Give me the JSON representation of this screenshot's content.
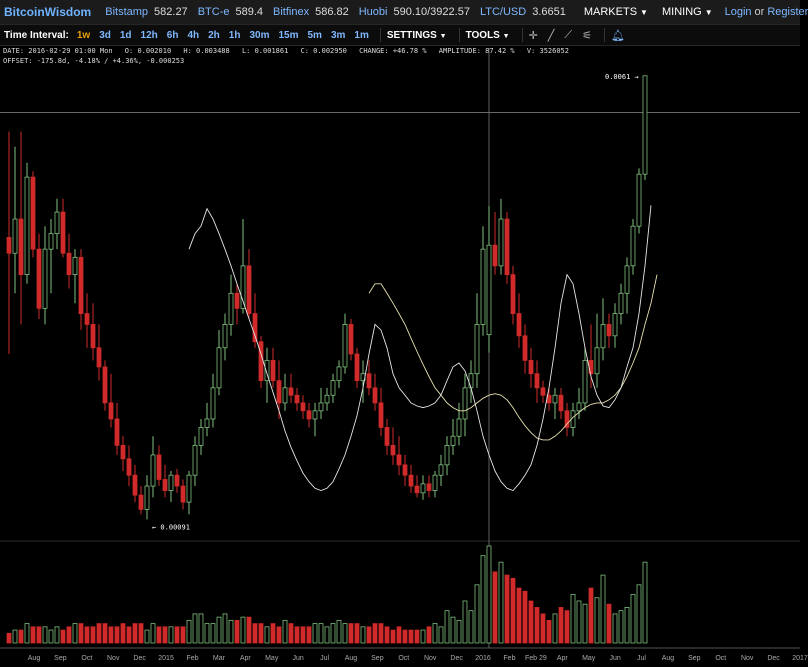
{
  "nav": {
    "logo": "BitcoinWisdom",
    "markets": [
      {
        "name": "Bitstamp",
        "value": "582.27"
      },
      {
        "name": "BTC-e",
        "value": "589.4"
      },
      {
        "name": "Bitfinex",
        "value": "586.82"
      },
      {
        "name": "Huobi",
        "value": "590.10/3922.57"
      },
      {
        "name": "LTC/USD",
        "value": "3.6651"
      }
    ],
    "menu_markets": "MARKETS",
    "menu_mining": "MINING",
    "login": "Login",
    "or": "or",
    "register": "Register"
  },
  "toolbar": {
    "interval_label": "Time Interval:",
    "intervals": [
      "1w",
      "3d",
      "1d",
      "12h",
      "6h",
      "4h",
      "2h",
      "1h",
      "30m",
      "15m",
      "5m",
      "3m",
      "1m"
    ],
    "active_interval": "1w",
    "settings": "SETTINGS",
    "tools": "TOOLS"
  },
  "info": {
    "line1": [
      "DATE: 2016-02-29 01:00 Mon",
      "O: 0.002010",
      "H: 0.003488",
      "L: 0.001861",
      "C: 0.002950",
      "CHANGE: +46.78 %",
      "AMPLITUDE: 87.42 %",
      "V: 3526052"
    ],
    "line2": "OFFSET: -175.8d, -4.18% / +4.36%, -0.000253"
  },
  "chart_data": {
    "type": "candlestick",
    "y_scale": "log",
    "ylim": [
      0.0009,
      0.0062
    ],
    "x_tick_labels": [
      "Aug",
      "Sep",
      "Oct",
      "Nov",
      "Dec",
      "2015",
      "Feb",
      "Mar",
      "Apr",
      "May",
      "Jun",
      "Jul",
      "Aug",
      "Sep",
      "Oct",
      "Nov",
      "Dec",
      "2016",
      "Feb",
      "Feb 29",
      "Apr",
      "May",
      "Jun",
      "Jul",
      "Aug",
      "Sep",
      "Oct",
      "Nov",
      "Dec",
      "2017"
    ],
    "annotations": {
      "max_label": "0.0061",
      "min_label": "0.00091"
    },
    "crosshair": {
      "date": "Feb 29",
      "value": 0.00521
    },
    "colors": {
      "up": "#7fc07f",
      "down": "#d02a2a",
      "ma_short": "#e6e6e6",
      "ma_long": "#e8e2b0",
      "axis": "#aaaaaa",
      "bg": "#000000"
    },
    "candles": [
      {
        "o": 0.00305,
        "h": 0.0048,
        "l": 0.00185,
        "c": 0.00285,
        "v": 3
      },
      {
        "o": 0.00285,
        "h": 0.0045,
        "l": 0.0024,
        "c": 0.0033,
        "v": 4
      },
      {
        "o": 0.0033,
        "h": 0.0048,
        "l": 0.0021,
        "c": 0.0026,
        "v": 4
      },
      {
        "o": 0.0026,
        "h": 0.0042,
        "l": 0.0025,
        "c": 0.00395,
        "v": 6
      },
      {
        "o": 0.00395,
        "h": 0.00405,
        "l": 0.0028,
        "c": 0.0029,
        "v": 5
      },
      {
        "o": 0.0029,
        "h": 0.0031,
        "l": 0.00215,
        "c": 0.00225,
        "v": 5
      },
      {
        "o": 0.00225,
        "h": 0.0032,
        "l": 0.0021,
        "c": 0.0029,
        "v": 5
      },
      {
        "o": 0.0029,
        "h": 0.0033,
        "l": 0.0024,
        "c": 0.0031,
        "v": 4
      },
      {
        "o": 0.0031,
        "h": 0.0036,
        "l": 0.0029,
        "c": 0.0034,
        "v": 5
      },
      {
        "o": 0.0034,
        "h": 0.0036,
        "l": 0.0028,
        "c": 0.00285,
        "v": 4
      },
      {
        "o": 0.00285,
        "h": 0.0031,
        "l": 0.00245,
        "c": 0.0026,
        "v": 5
      },
      {
        "o": 0.0026,
        "h": 0.0029,
        "l": 0.0023,
        "c": 0.0028,
        "v": 6
      },
      {
        "o": 0.0028,
        "h": 0.0029,
        "l": 0.00205,
        "c": 0.0022,
        "v": 6
      },
      {
        "o": 0.0022,
        "h": 0.0024,
        "l": 0.0019,
        "c": 0.0021,
        "v": 5
      },
      {
        "o": 0.0021,
        "h": 0.0023,
        "l": 0.0018,
        "c": 0.0019,
        "v": 5
      },
      {
        "o": 0.0019,
        "h": 0.0021,
        "l": 0.00165,
        "c": 0.00175,
        "v": 6
      },
      {
        "o": 0.00175,
        "h": 0.0018,
        "l": 0.00145,
        "c": 0.0015,
        "v": 6
      },
      {
        "o": 0.0015,
        "h": 0.0017,
        "l": 0.00135,
        "c": 0.0014,
        "v": 5
      },
      {
        "o": 0.0014,
        "h": 0.0015,
        "l": 0.0012,
        "c": 0.00125,
        "v": 5
      },
      {
        "o": 0.00125,
        "h": 0.0013,
        "l": 0.00112,
        "c": 0.00118,
        "v": 6
      },
      {
        "o": 0.00118,
        "h": 0.00125,
        "l": 0.00105,
        "c": 0.0011,
        "v": 5
      },
      {
        "o": 0.0011,
        "h": 0.00115,
        "l": 0.00098,
        "c": 0.00101,
        "v": 6
      },
      {
        "o": 0.00101,
        "h": 0.00105,
        "l": 0.00093,
        "c": 0.00095,
        "v": 6
      },
      {
        "o": 0.00095,
        "h": 0.0011,
        "l": 0.00091,
        "c": 0.00105,
        "v": 4
      },
      {
        "o": 0.00105,
        "h": 0.0013,
        "l": 0.001,
        "c": 0.0012,
        "v": 6
      },
      {
        "o": 0.0012,
        "h": 0.00125,
        "l": 0.00105,
        "c": 0.00108,
        "v": 5
      },
      {
        "o": 0.00108,
        "h": 0.00115,
        "l": 0.001,
        "c": 0.00103,
        "v": 5
      },
      {
        "o": 0.00103,
        "h": 0.00112,
        "l": 0.00098,
        "c": 0.0011,
        "v": 5
      },
      {
        "o": 0.0011,
        "h": 0.00113,
        "l": 0.00102,
        "c": 0.00105,
        "v": 5
      },
      {
        "o": 0.00105,
        "h": 0.00108,
        "l": 0.00095,
        "c": 0.00098,
        "v": 5
      },
      {
        "o": 0.00098,
        "h": 0.00112,
        "l": 0.00093,
        "c": 0.0011,
        "v": 7
      },
      {
        "o": 0.0011,
        "h": 0.0013,
        "l": 0.00105,
        "c": 0.00125,
        "v": 9
      },
      {
        "o": 0.00125,
        "h": 0.0014,
        "l": 0.0012,
        "c": 0.00135,
        "v": 9
      },
      {
        "o": 0.00135,
        "h": 0.0015,
        "l": 0.0013,
        "c": 0.0014,
        "v": 6
      },
      {
        "o": 0.0014,
        "h": 0.0017,
        "l": 0.00135,
        "c": 0.0016,
        "v": 6
      },
      {
        "o": 0.0016,
        "h": 0.00205,
        "l": 0.00155,
        "c": 0.0019,
        "v": 8
      },
      {
        "o": 0.0019,
        "h": 0.0022,
        "l": 0.0018,
        "c": 0.0021,
        "v": 9
      },
      {
        "o": 0.0021,
        "h": 0.0026,
        "l": 0.002,
        "c": 0.0024,
        "v": 7
      },
      {
        "o": 0.0024,
        "h": 0.0025,
        "l": 0.0021,
        "c": 0.00225,
        "v": 7
      },
      {
        "o": 0.00225,
        "h": 0.0033,
        "l": 0.0022,
        "c": 0.0027,
        "v": 8
      },
      {
        "o": 0.0027,
        "h": 0.0029,
        "l": 0.00215,
        "c": 0.0022,
        "v": 8
      },
      {
        "o": 0.0022,
        "h": 0.0024,
        "l": 0.0019,
        "c": 0.00195,
        "v": 6
      },
      {
        "o": 0.00195,
        "h": 0.002,
        "l": 0.0016,
        "c": 0.00165,
        "v": 6
      },
      {
        "o": 0.00165,
        "h": 0.0019,
        "l": 0.0015,
        "c": 0.0018,
        "v": 5
      },
      {
        "o": 0.0018,
        "h": 0.0019,
        "l": 0.0016,
        "c": 0.00165,
        "v": 6
      },
      {
        "o": 0.00165,
        "h": 0.0018,
        "l": 0.0014,
        "c": 0.0015,
        "v": 5
      },
      {
        "o": 0.0015,
        "h": 0.0017,
        "l": 0.00145,
        "c": 0.0016,
        "v": 7
      },
      {
        "o": 0.0016,
        "h": 0.0017,
        "l": 0.0015,
        "c": 0.00155,
        "v": 6
      },
      {
        "o": 0.00155,
        "h": 0.0016,
        "l": 0.00145,
        "c": 0.0015,
        "v": 5
      },
      {
        "o": 0.0015,
        "h": 0.00155,
        "l": 0.0014,
        "c": 0.00145,
        "v": 5
      },
      {
        "o": 0.00145,
        "h": 0.0015,
        "l": 0.00135,
        "c": 0.0014,
        "v": 5
      },
      {
        "o": 0.0014,
        "h": 0.0015,
        "l": 0.0013,
        "c": 0.00145,
        "v": 6
      },
      {
        "o": 0.00145,
        "h": 0.0016,
        "l": 0.0014,
        "c": 0.0015,
        "v": 6
      },
      {
        "o": 0.0015,
        "h": 0.0016,
        "l": 0.00145,
        "c": 0.00155,
        "v": 5
      },
      {
        "o": 0.00155,
        "h": 0.0017,
        "l": 0.0015,
        "c": 0.00165,
        "v": 6
      },
      {
        "o": 0.00165,
        "h": 0.0018,
        "l": 0.0016,
        "c": 0.00175,
        "v": 7
      },
      {
        "o": 0.00175,
        "h": 0.0022,
        "l": 0.0017,
        "c": 0.0021,
        "v": 6
      },
      {
        "o": 0.0021,
        "h": 0.00215,
        "l": 0.0018,
        "c": 0.00185,
        "v": 6
      },
      {
        "o": 0.00185,
        "h": 0.0019,
        "l": 0.0016,
        "c": 0.00165,
        "v": 6
      },
      {
        "o": 0.00165,
        "h": 0.0018,
        "l": 0.0015,
        "c": 0.0017,
        "v": 5
      },
      {
        "o": 0.0017,
        "h": 0.0018,
        "l": 0.00155,
        "c": 0.0016,
        "v": 5
      },
      {
        "o": 0.0016,
        "h": 0.0017,
        "l": 0.00145,
        "c": 0.0015,
        "v": 6
      },
      {
        "o": 0.0015,
        "h": 0.0016,
        "l": 0.0013,
        "c": 0.00135,
        "v": 6
      },
      {
        "o": 0.00135,
        "h": 0.0014,
        "l": 0.0012,
        "c": 0.00125,
        "v": 5
      },
      {
        "o": 0.00125,
        "h": 0.00135,
        "l": 0.00115,
        "c": 0.0012,
        "v": 4
      },
      {
        "o": 0.0012,
        "h": 0.0013,
        "l": 0.0011,
        "c": 0.00115,
        "v": 5
      },
      {
        "o": 0.00115,
        "h": 0.0012,
        "l": 0.00105,
        "c": 0.0011,
        "v": 4
      },
      {
        "o": 0.0011,
        "h": 0.00115,
        "l": 0.00102,
        "c": 0.00105,
        "v": 4
      },
      {
        "o": 0.00105,
        "h": 0.0011,
        "l": 0.001,
        "c": 0.00102,
        "v": 4
      },
      {
        "o": 0.00102,
        "h": 0.0011,
        "l": 0.00099,
        "c": 0.00106,
        "v": 4
      },
      {
        "o": 0.00106,
        "h": 0.0011,
        "l": 0.001,
        "c": 0.00103,
        "v": 5
      },
      {
        "o": 0.00103,
        "h": 0.00112,
        "l": 0.001,
        "c": 0.0011,
        "v": 6
      },
      {
        "o": 0.0011,
        "h": 0.0012,
        "l": 0.00105,
        "c": 0.00115,
        "v": 5
      },
      {
        "o": 0.00115,
        "h": 0.0013,
        "l": 0.0011,
        "c": 0.00125,
        "v": 10
      },
      {
        "o": 0.00125,
        "h": 0.0014,
        "l": 0.0012,
        "c": 0.0013,
        "v": 8
      },
      {
        "o": 0.0013,
        "h": 0.0015,
        "l": 0.00125,
        "c": 0.0014,
        "v": 7
      },
      {
        "o": 0.0014,
        "h": 0.0017,
        "l": 0.0013,
        "c": 0.0016,
        "v": 13
      },
      {
        "o": 0.0016,
        "h": 0.0018,
        "l": 0.0015,
        "c": 0.0017,
        "v": 10
      },
      {
        "o": 0.0017,
        "h": 0.0024,
        "l": 0.0016,
        "c": 0.0021,
        "v": 18
      },
      {
        "o": 0.0021,
        "h": 0.0032,
        "l": 0.002,
        "c": 0.0029,
        "v": 27
      },
      {
        "o": 0.00201,
        "h": 0.003488,
        "l": 0.001861,
        "c": 0.00295,
        "v": 30
      },
      {
        "o": 0.00295,
        "h": 0.0034,
        "l": 0.0026,
        "c": 0.0027,
        "v": 22
      },
      {
        "o": 0.0027,
        "h": 0.0036,
        "l": 0.0026,
        "c": 0.0033,
        "v": 25
      },
      {
        "o": 0.0033,
        "h": 0.0034,
        "l": 0.0025,
        "c": 0.0026,
        "v": 21
      },
      {
        "o": 0.0026,
        "h": 0.0027,
        "l": 0.0021,
        "c": 0.0022,
        "v": 20
      },
      {
        "o": 0.0022,
        "h": 0.0024,
        "l": 0.0019,
        "c": 0.002,
        "v": 17
      },
      {
        "o": 0.002,
        "h": 0.0021,
        "l": 0.0017,
        "c": 0.0018,
        "v": 16
      },
      {
        "o": 0.0018,
        "h": 0.0019,
        "l": 0.0016,
        "c": 0.0017,
        "v": 13
      },
      {
        "o": 0.0017,
        "h": 0.0018,
        "l": 0.0015,
        "c": 0.0016,
        "v": 11
      },
      {
        "o": 0.0016,
        "h": 0.00165,
        "l": 0.0015,
        "c": 0.00155,
        "v": 9
      },
      {
        "o": 0.00155,
        "h": 0.0016,
        "l": 0.00145,
        "c": 0.0015,
        "v": 7
      },
      {
        "o": 0.0015,
        "h": 0.0016,
        "l": 0.0014,
        "c": 0.00155,
        "v": 9
      },
      {
        "o": 0.00155,
        "h": 0.0016,
        "l": 0.0014,
        "c": 0.00145,
        "v": 11
      },
      {
        "o": 0.00145,
        "h": 0.0015,
        "l": 0.0013,
        "c": 0.00135,
        "v": 10
      },
      {
        "o": 0.00135,
        "h": 0.0015,
        "l": 0.0013,
        "c": 0.00145,
        "v": 15
      },
      {
        "o": 0.00145,
        "h": 0.0016,
        "l": 0.0014,
        "c": 0.0015,
        "v": 13
      },
      {
        "o": 0.0015,
        "h": 0.0019,
        "l": 0.00145,
        "c": 0.0018,
        "v": 12
      },
      {
        "o": 0.0018,
        "h": 0.0021,
        "l": 0.0016,
        "c": 0.0017,
        "v": 17
      },
      {
        "o": 0.0017,
        "h": 0.0022,
        "l": 0.0016,
        "c": 0.0019,
        "v": 14
      },
      {
        "o": 0.0019,
        "h": 0.00235,
        "l": 0.0018,
        "c": 0.0021,
        "v": 21
      },
      {
        "o": 0.0021,
        "h": 0.0022,
        "l": 0.0019,
        "c": 0.002,
        "v": 12
      },
      {
        "o": 0.002,
        "h": 0.0023,
        "l": 0.0019,
        "c": 0.0022,
        "v": 9
      },
      {
        "o": 0.0022,
        "h": 0.0025,
        "l": 0.0021,
        "c": 0.0024,
        "v": 10
      },
      {
        "o": 0.0024,
        "h": 0.0028,
        "l": 0.0022,
        "c": 0.0027,
        "v": 11
      },
      {
        "o": 0.0027,
        "h": 0.0033,
        "l": 0.0026,
        "c": 0.0032,
        "v": 15
      },
      {
        "o": 0.0032,
        "h": 0.0041,
        "l": 0.0031,
        "c": 0.004,
        "v": 18
      },
      {
        "o": 0.004,
        "h": 0.0061,
        "l": 0.0039,
        "c": 0.0061,
        "v": 25
      }
    ],
    "ma_short": [
      0.0029,
      0.0031,
      0.0032,
      0.00345,
      0.0033,
      0.0031,
      0.0029,
      0.0027,
      0.0025,
      0.00232,
      0.00215,
      0.002,
      0.00185,
      0.0017,
      0.00157,
      0.00145,
      0.00133,
      0.00124,
      0.00117,
      0.00111,
      0.00107,
      0.00104,
      0.00103,
      0.00104,
      0.00107,
      0.00113,
      0.0012,
      0.0013,
      0.00142,
      0.0016,
      0.00185,
      0.0021,
      0.00205,
      0.0019,
      0.0017,
      0.0016,
      0.00155,
      0.0015,
      0.00148,
      0.00147,
      0.00148,
      0.0015,
      0.00155,
      0.00165,
      0.00175,
      0.00178,
      0.00172,
      0.0016,
      0.00145,
      0.0013,
      0.0012,
      0.00112,
      0.00107,
      0.00104,
      0.00103,
      0.00106,
      0.0011,
      0.00115,
      0.00125,
      0.0014,
      0.0016,
      0.0019,
      0.0023,
      0.0026,
      0.0025,
      0.0022,
      0.0019,
      0.00168,
      0.00155,
      0.00148,
      0.00147,
      0.00152,
      0.0016,
      0.00175,
      0.0019,
      0.0022,
      0.0027,
      0.0035
    ],
    "ma_short_start": 30,
    "ma_long": [
      0.0024,
      0.0025,
      0.0025,
      0.0024,
      0.0023,
      0.0022,
      0.0021,
      0.00198,
      0.00187,
      0.00177,
      0.00168,
      0.0016,
      0.00155,
      0.0015,
      0.00147,
      0.00145,
      0.00145,
      0.00147,
      0.0015,
      0.00153,
      0.00155,
      0.00156,
      0.00155,
      0.00152,
      0.00147,
      0.00141,
      0.00136,
      0.00132,
      0.00129,
      0.00128,
      0.00128,
      0.0013,
      0.00133,
      0.00137,
      0.00141,
      0.00144,
      0.00147,
      0.00149,
      0.0015,
      0.0015,
      0.00152,
      0.00155,
      0.0016,
      0.00168,
      0.00178,
      0.0019,
      0.0021,
      0.0023,
      0.0026
    ],
    "ma_long_start": 60
  }
}
